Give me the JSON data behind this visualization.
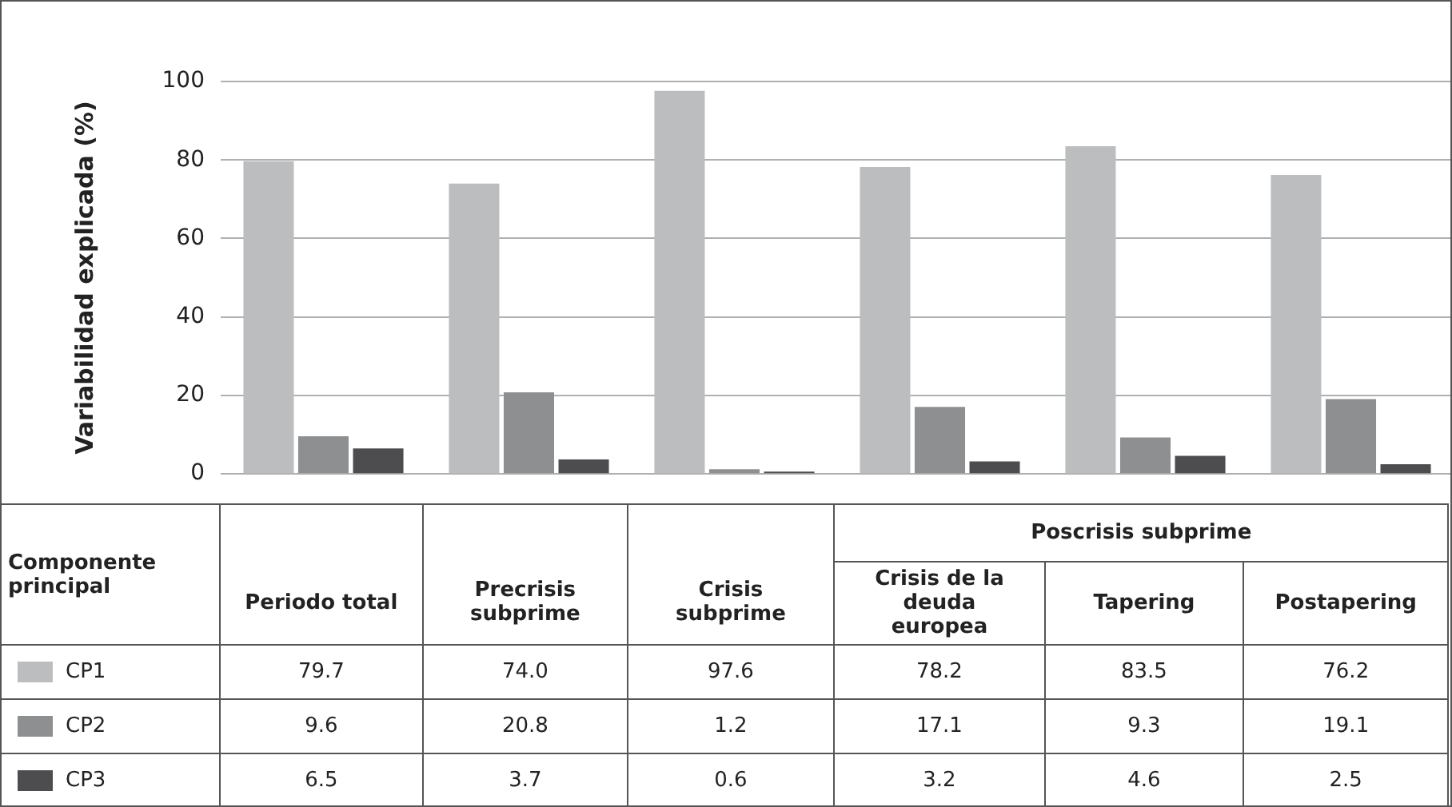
{
  "chart_data": {
    "type": "bar",
    "ylabel": "Variabilidad explicada (%)",
    "legend_title": "Componente principal",
    "categories": [
      "Periodo total",
      "Precrisis subprime",
      "Crisis subprime",
      "Crisis de la deuda europea",
      "Tapering",
      "Postapering"
    ],
    "annotations": [
      "Poscrisis subprime"
    ],
    "series": [
      {
        "name": "CP1",
        "color": "#bcbdbf",
        "values": [
          79.7,
          74.0,
          97.6,
          78.2,
          83.5,
          76.2
        ],
        "value_labels": [
          "79.7",
          "74.0",
          "97.6",
          "78.2",
          "83.5",
          "76.2"
        ]
      },
      {
        "name": "CP2",
        "color": "#8e8f91",
        "values": [
          9.6,
          20.8,
          1.2,
          17.1,
          9.3,
          19.1
        ],
        "value_labels": [
          "9.6",
          "20.8",
          "1.2",
          "17.1",
          "9.3",
          "19.1"
        ]
      },
      {
        "name": "CP3",
        "color": "#4d4d4f",
        "values": [
          6.5,
          3.7,
          0.6,
          3.2,
          4.6,
          2.5
        ],
        "value_labels": [
          "6.5",
          "3.7",
          "0.6",
          "3.2",
          "4.6",
          "2.5"
        ]
      }
    ],
    "ylim": [
      0,
      100
    ],
    "yticks": [
      0,
      20,
      40,
      60,
      80,
      100
    ],
    "grid": "y",
    "legend": "bottom",
    "tick_labels": "y"
  }
}
